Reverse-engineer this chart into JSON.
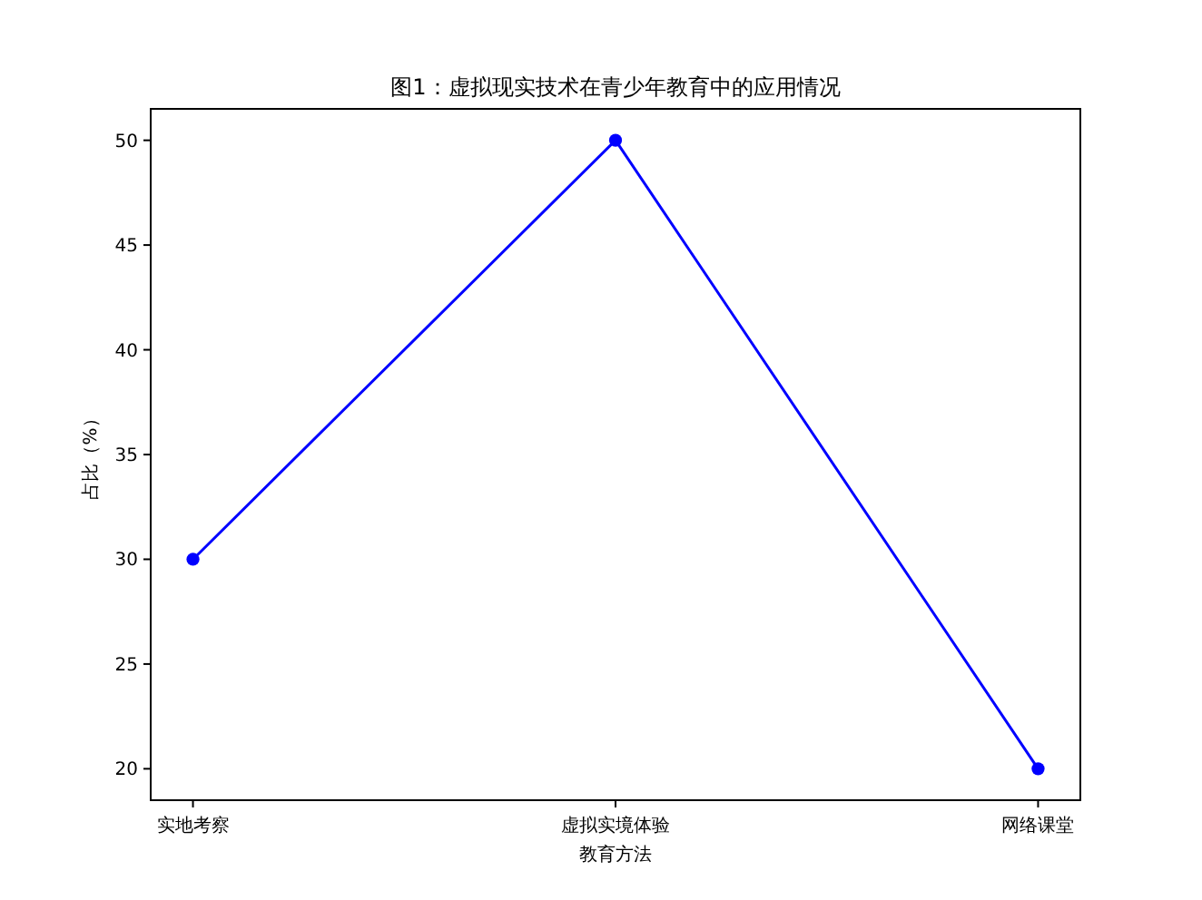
{
  "chart_data": {
    "type": "line",
    "title": "图1：虚拟现实技术在青少年教育中的应用情况",
    "xlabel": "教育方法",
    "ylabel": "占比（%）",
    "categories": [
      "实地考察",
      "虚拟实境体验",
      "网络课堂"
    ],
    "series": [
      {
        "color": "#0000ff",
        "values": [
          30,
          50,
          20
        ]
      }
    ],
    "ylim": [
      18.5,
      51.5
    ],
    "yticks": [
      20,
      25,
      30,
      35,
      40,
      45,
      50
    ],
    "marker": "circle",
    "grid": false
  }
}
